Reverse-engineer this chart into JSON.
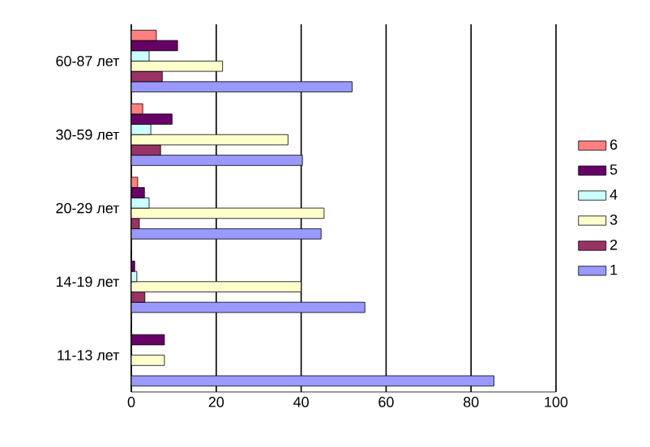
{
  "chart_data": {
    "type": "bar",
    "orientation": "horizontal",
    "categories": [
      "60-87 лет",
      "30-59 лет",
      "20-29 лет",
      "14-19 лет",
      "11-13 лет"
    ],
    "series": [
      {
        "name": "1",
        "color": "#9999ff",
        "values": [
          52,
          40.3,
          44.7,
          55,
          85.4
        ]
      },
      {
        "name": "2",
        "color": "#993366",
        "values": [
          7.3,
          6.9,
          1.9,
          3.2,
          0
        ]
      },
      {
        "name": "3",
        "color": "#ffffcc",
        "values": [
          21.5,
          36.9,
          45.4,
          40,
          7.8
        ]
      },
      {
        "name": "4",
        "color": "#ccffff",
        "values": [
          4.2,
          4.6,
          4.2,
          1.3,
          0
        ]
      },
      {
        "name": "5",
        "color": "#660066",
        "values": [
          10.9,
          9.6,
          3.1,
          0.8,
          7.8
        ]
      },
      {
        "name": "6",
        "color": "#ff8080",
        "values": [
          5.9,
          2.7,
          1.5,
          0,
          0
        ]
      }
    ],
    "xlim": [
      0,
      100
    ],
    "xticks": [
      0,
      20,
      40,
      60,
      80,
      100
    ],
    "grid": "x",
    "legend": "right"
  }
}
